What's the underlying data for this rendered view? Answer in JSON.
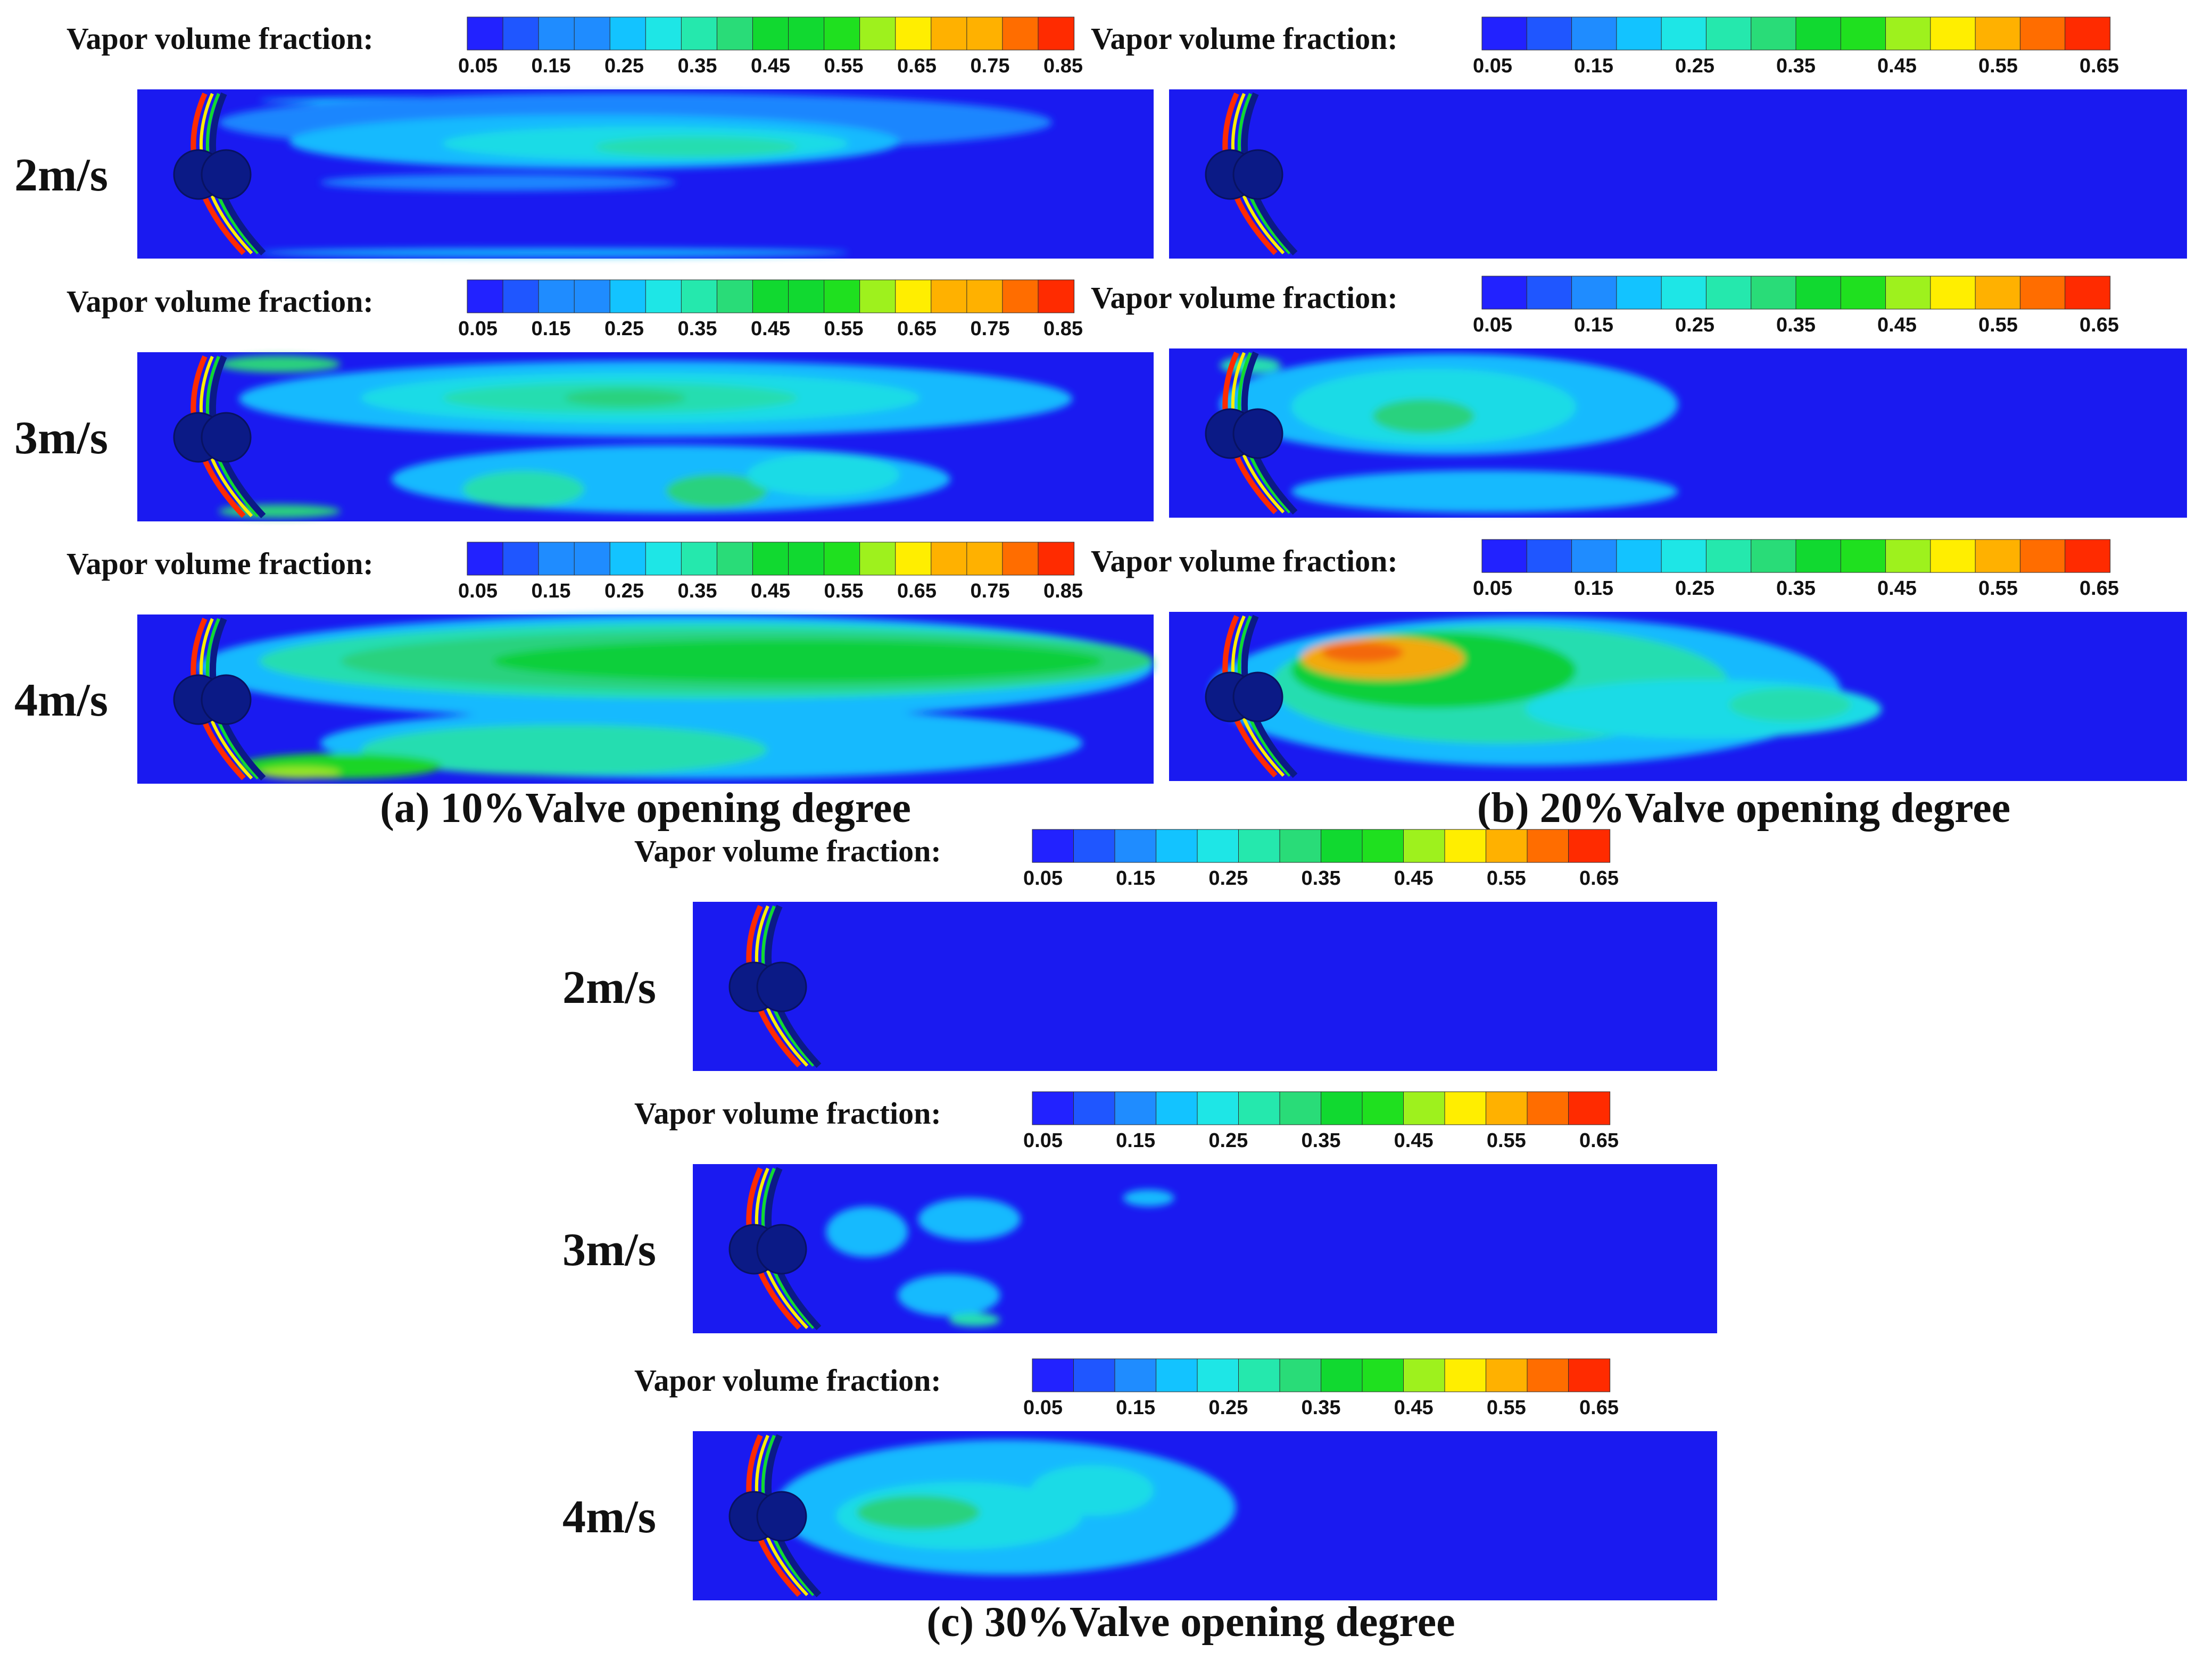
{
  "figure": {
    "colors": {
      "domain_blue": "#1a1af0",
      "rotor_dark": "#0b1a86",
      "scale": [
        "#2222ff",
        "#1f56ff",
        "#1f8cff",
        "#13c3ff",
        "#1ee6e6",
        "#25e8ad",
        "#29dc78",
        "#11d930",
        "#1fe01f",
        "#9ef11d",
        "#ffee00",
        "#ffb100",
        "#ff6d00",
        "#ff2b00"
      ]
    },
    "panels": [
      {
        "caption": "(a) 10%Valve opening degree",
        "colorbar_ticks": [
          "0.05",
          "0.15",
          "0.25",
          "0.35",
          "0.45",
          "0.55",
          "0.65",
          "0.75",
          "0.85"
        ],
        "rows": [
          {
            "speed": "2m/s",
            "colorbar_label": "Vapor volume fraction:",
            "cavitation": "wall-bands-and-core"
          },
          {
            "speed": "3m/s",
            "colorbar_label": "Vapor volume fraction:",
            "cavitation": "broken-clouds"
          },
          {
            "speed": "4m/s",
            "colorbar_label": "Vapor volume fraction:",
            "cavitation": "full-length-cloud"
          }
        ]
      },
      {
        "caption": "(b) 20%Valve opening degree",
        "colorbar_ticks": [
          "0.05",
          "0.15",
          "0.25",
          "0.35",
          "0.45",
          "0.55",
          "0.65"
        ],
        "rows": [
          {
            "speed": "2m/s",
            "colorbar_label": "Vapor volume fraction:",
            "cavitation": "none"
          },
          {
            "speed": "3m/s",
            "colorbar_label": "Vapor volume fraction:",
            "cavitation": "small-cloud"
          },
          {
            "speed": "4m/s",
            "colorbar_label": "Vapor volume fraction:",
            "cavitation": "strong-cloud"
          }
        ]
      },
      {
        "caption": "(c) 30%Valve opening degree",
        "colorbar_ticks": [
          "0.05",
          "0.15",
          "0.25",
          "0.35",
          "0.45",
          "0.55",
          "0.65"
        ],
        "rows": [
          {
            "speed": "2m/s",
            "colorbar_label": "Vapor volume fraction:",
            "cavitation": "none"
          },
          {
            "speed": "3m/s",
            "colorbar_label": "Vapor volume fraction:",
            "cavitation": "sparse-patches"
          },
          {
            "speed": "4m/s",
            "colorbar_label": "Vapor volume fraction:",
            "cavitation": "moderate-cloud"
          }
        ]
      }
    ]
  }
}
